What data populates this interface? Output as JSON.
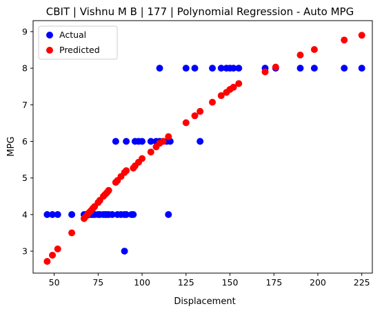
{
  "chart_data": {
    "type": "scatter",
    "title": "CBIT | Vishnu M B | 177 | Polynomial Regression - Auto MPG",
    "xlabel": "Displacement",
    "ylabel": "MPG",
    "xlim": [
      38,
      231
    ],
    "ylim": [
      2.4,
      9.3
    ],
    "xticks": [
      50,
      75,
      100,
      125,
      150,
      175,
      200,
      225
    ],
    "yticks": [
      3,
      4,
      5,
      6,
      7,
      8,
      9
    ],
    "grid": false,
    "legend_position": "upper-left",
    "series": [
      {
        "name": "Actual",
        "color": "#0000ff",
        "points": [
          [
            46,
            4
          ],
          [
            49,
            4
          ],
          [
            52,
            4
          ],
          [
            60,
            4
          ],
          [
            67,
            4
          ],
          [
            68,
            4
          ],
          [
            69,
            4
          ],
          [
            70,
            4
          ],
          [
            71,
            4
          ],
          [
            72,
            4
          ],
          [
            73,
            4
          ],
          [
            75,
            4
          ],
          [
            76,
            4
          ],
          [
            78,
            4
          ],
          [
            79,
            4
          ],
          [
            80,
            4
          ],
          [
            81,
            4
          ],
          [
            83,
            4
          ],
          [
            86,
            4
          ],
          [
            88,
            4
          ],
          [
            90,
            4
          ],
          [
            91,
            4
          ],
          [
            94,
            4
          ],
          [
            95,
            4
          ],
          [
            115,
            4
          ],
          [
            90,
            3
          ],
          [
            85,
            6
          ],
          [
            91,
            6
          ],
          [
            96,
            6
          ],
          [
            98,
            6
          ],
          [
            100,
            6
          ],
          [
            105,
            6
          ],
          [
            108,
            6
          ],
          [
            110,
            6
          ],
          [
            112,
            6
          ],
          [
            114,
            6
          ],
          [
            116,
            6
          ],
          [
            133,
            6
          ],
          [
            110,
            8
          ],
          [
            125,
            8
          ],
          [
            130,
            8
          ],
          [
            140,
            8
          ],
          [
            145,
            8
          ],
          [
            148,
            8
          ],
          [
            150,
            8
          ],
          [
            152,
            8
          ],
          [
            155,
            8
          ],
          [
            170,
            8
          ],
          [
            176,
            8
          ],
          [
            190,
            8
          ],
          [
            198,
            8
          ],
          [
            215,
            8
          ],
          [
            225,
            8
          ]
        ]
      },
      {
        "name": "Predicted",
        "color": "#ff0000",
        "points": [
          [
            46,
            2.72
          ],
          [
            49,
            2.89
          ],
          [
            52,
            3.06
          ],
          [
            60,
            3.5
          ],
          [
            67,
            3.89
          ],
          [
            68,
            3.95
          ],
          [
            69,
            4.0
          ],
          [
            70,
            4.06
          ],
          [
            71,
            4.11
          ],
          [
            72,
            4.17
          ],
          [
            73,
            4.22
          ],
          [
            75,
            4.33
          ],
          [
            76,
            4.39
          ],
          [
            78,
            4.5
          ],
          [
            79,
            4.55
          ],
          [
            80,
            4.6
          ],
          [
            81,
            4.66
          ],
          [
            85,
            4.88
          ],
          [
            86,
            4.93
          ],
          [
            88,
            5.04
          ],
          [
            90,
            5.15
          ],
          [
            91,
            5.2
          ],
          [
            95,
            5.27
          ],
          [
            96,
            5.33
          ],
          [
            98,
            5.43
          ],
          [
            100,
            5.53
          ],
          [
            105,
            5.71
          ],
          [
            108,
            5.85
          ],
          [
            110,
            5.95
          ],
          [
            112,
            6.0
          ],
          [
            115,
            6.13
          ],
          [
            125,
            6.51
          ],
          [
            130,
            6.7
          ],
          [
            133,
            6.82
          ],
          [
            140,
            7.07
          ],
          [
            145,
            7.25
          ],
          [
            148,
            7.34
          ],
          [
            150,
            7.42
          ],
          [
            152,
            7.48
          ],
          [
            155,
            7.58
          ],
          [
            170,
            7.9
          ],
          [
            176,
            8.03
          ],
          [
            190,
            8.36
          ],
          [
            198,
            8.51
          ],
          [
            215,
            8.77
          ],
          [
            225,
            8.9
          ]
        ]
      }
    ]
  }
}
